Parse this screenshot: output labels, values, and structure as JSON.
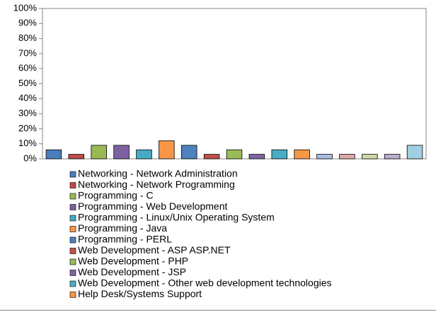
{
  "chart_data": {
    "type": "bar",
    "series": [
      {
        "name": "Networking - Network Administration",
        "color": "#4a7ebb",
        "values": [
          6
        ]
      },
      {
        "name": "Networking - Network Programming",
        "color": "#be4b48",
        "values": [
          3
        ]
      },
      {
        "name": "Programming - C",
        "color": "#98b954",
        "values": [
          9
        ]
      },
      {
        "name": "Programming - Web Development",
        "color": "#7d60a0",
        "values": [
          9
        ]
      },
      {
        "name": "Programming - Linux/Unix Operating System",
        "color": "#46aac5",
        "values": [
          6
        ]
      },
      {
        "name": "Programming - Java",
        "color": "#f79646",
        "values": [
          12
        ]
      },
      {
        "name": "Programming - PERL",
        "color": "#4f81bd",
        "values": [
          9
        ]
      },
      {
        "name": "Web Development - ASP ASP.NET",
        "color": "#c0504d",
        "values": [
          3
        ]
      },
      {
        "name": "Web Development - PHP",
        "color": "#9bbb59",
        "values": [
          6
        ]
      },
      {
        "name": "Web Development - JSP",
        "color": "#8064a2",
        "values": [
          3
        ]
      },
      {
        "name": "Web Development - Other web development technologies",
        "color": "#4bacc6",
        "values": [
          6
        ]
      },
      {
        "name": "Help Desk/Systems Support",
        "color": "#f79646",
        "values": [
          6
        ]
      },
      {
        "name": null,
        "color": "#a9bde0",
        "values": [
          3
        ]
      },
      {
        "name": null,
        "color": "#e0a9a8",
        "values": [
          3
        ]
      },
      {
        "name": null,
        "color": "#cedba6",
        "values": [
          3
        ]
      },
      {
        "name": null,
        "color": "#b9aed0",
        "values": [
          3
        ]
      },
      {
        "name": null,
        "color": "#9ed0e0",
        "values": [
          9
        ]
      }
    ],
    "ylim": [
      0,
      100
    ],
    "yticks": [
      {
        "value": 0,
        "label": "0%"
      },
      {
        "value": 10,
        "label": "10%"
      },
      {
        "value": 20,
        "label": "20%"
      },
      {
        "value": 30,
        "label": "30%"
      },
      {
        "value": 40,
        "label": "40%"
      },
      {
        "value": 50,
        "label": "50%"
      },
      {
        "value": 60,
        "label": "60%"
      },
      {
        "value": 70,
        "label": "70%"
      },
      {
        "value": 80,
        "label": "80%"
      },
      {
        "value": 90,
        "label": "90%"
      },
      {
        "value": 100,
        "label": "100%"
      }
    ]
  }
}
